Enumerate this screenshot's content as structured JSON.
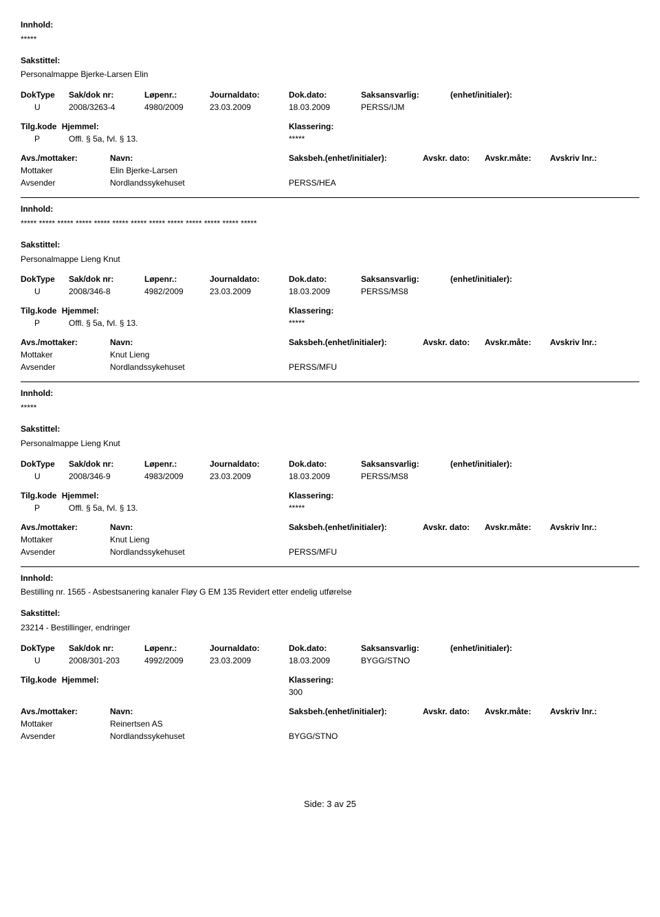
{
  "labels": {
    "innhold": "Innhold:",
    "sakstittel": "Sakstittel:",
    "doktype": "DokType",
    "sakdok": "Sak/dok nr:",
    "lopenr": "Løpenr.:",
    "journaldato": "Journaldato:",
    "dokdato": "Dok.dato:",
    "saksansvarlig": "Saksansvarlig:",
    "enhet": "(enhet/initialer):",
    "tilgkode": "Tilg.kode",
    "hjemmel": "Hjemmel:",
    "klassering": "Klassering:",
    "avsmottaker": "Avs./mottaker:",
    "navn": "Navn:",
    "saksbeh": "Saksbeh.(enhet/initialer):",
    "avskrdato": "Avskr. dato:",
    "avskrmote": "Avskr.måte:",
    "avskrivlnr": "Avskriv lnr.:",
    "mottaker": "Mottaker",
    "avsender": "Avsender"
  },
  "entries": [
    {
      "innhold": "*****",
      "sakstittel": "Personalmappe Bjerke-Larsen Elin",
      "doktype": "U",
      "sakdok": "2008/3263-4",
      "lopenr": "4980/2009",
      "journaldato": "23.03.2009",
      "dokdato": "18.03.2009",
      "saksansvarlig": "PERSS/IJM",
      "tilgkode": "P",
      "hjemmel": "Offl. § 5a, fvl. § 13.",
      "klassering": "*****",
      "mottaker": "Elin Bjerke-Larsen",
      "avsender": "Nordlandssykehuset",
      "saksbeh": "PERSS/HEA"
    },
    {
      "innhold": "***** ***** ***** ***** ***** ***** ***** ***** ***** ***** ***** ***** *****",
      "sakstittel": "Personalmappe Lieng Knut",
      "doktype": "U",
      "sakdok": "2008/346-8",
      "lopenr": "4982/2009",
      "journaldato": "23.03.2009",
      "dokdato": "18.03.2009",
      "saksansvarlig": "PERSS/MS8",
      "tilgkode": "P",
      "hjemmel": "Offl. § 5a, fvl. § 13.",
      "klassering": "*****",
      "mottaker": "Knut Lieng",
      "avsender": "Nordlandssykehuset",
      "saksbeh": "PERSS/MFU"
    },
    {
      "innhold": "*****",
      "sakstittel": "Personalmappe Lieng Knut",
      "doktype": "U",
      "sakdok": "2008/346-9",
      "lopenr": "4983/2009",
      "journaldato": "23.03.2009",
      "dokdato": "18.03.2009",
      "saksansvarlig": "PERSS/MS8",
      "tilgkode": "P",
      "hjemmel": "Offl. § 5a, fvl. § 13.",
      "klassering": "*****",
      "mottaker": "Knut Lieng",
      "avsender": "Nordlandssykehuset",
      "saksbeh": "PERSS/MFU"
    },
    {
      "innhold": "Bestilling nr. 1565 - Asbestsanering kanaler Fløy G EM 135 Revidert etter endelig utførelse",
      "sakstittel": "23214 - Bestillinger, endringer",
      "doktype": "U",
      "sakdok": "2008/301-203",
      "lopenr": "4992/2009",
      "journaldato": "23.03.2009",
      "dokdato": "18.03.2009",
      "saksansvarlig": "BYGG/STNO",
      "tilgkode": "",
      "hjemmel": "",
      "klassering": "300",
      "mottaker": "Reinertsen AS",
      "avsender": "Nordlandssykehuset",
      "saksbeh": "BYGG/STNO"
    }
  ],
  "footer": "Side: 3 av 25"
}
